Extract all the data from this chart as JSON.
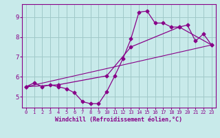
{
  "xlabel": "Windchill (Refroidissement éolien,°C)",
  "xlim": [
    -0.5,
    23.5
  ],
  "ylim": [
    4.45,
    9.65
  ],
  "yticks": [
    5,
    6,
    7,
    8,
    9
  ],
  "xticks": [
    0,
    1,
    2,
    3,
    4,
    5,
    6,
    7,
    8,
    9,
    10,
    11,
    12,
    13,
    14,
    15,
    16,
    17,
    18,
    19,
    20,
    21,
    22,
    23
  ],
  "bg_color": "#c8eaea",
  "grid_color": "#a0c8c8",
  "line_color": "#880088",
  "curve1_x": [
    0,
    1,
    2,
    3,
    4,
    5,
    6,
    7,
    8,
    9,
    10,
    11,
    12,
    13,
    14,
    15,
    16,
    17,
    18,
    19,
    20,
    21,
    22,
    23
  ],
  "curve1_y": [
    5.5,
    5.7,
    5.5,
    5.6,
    5.5,
    5.4,
    5.2,
    4.75,
    4.65,
    4.65,
    5.25,
    6.05,
    6.9,
    7.9,
    9.25,
    9.3,
    8.7,
    8.7,
    8.5,
    8.5,
    8.6,
    7.8,
    8.15,
    7.6
  ],
  "curve2_x": [
    0,
    4,
    10,
    13,
    19,
    23
  ],
  "curve2_y": [
    5.5,
    5.6,
    6.05,
    7.5,
    8.5,
    7.6
  ],
  "trend_x": [
    0,
    23
  ],
  "trend_y": [
    5.5,
    7.6
  ]
}
